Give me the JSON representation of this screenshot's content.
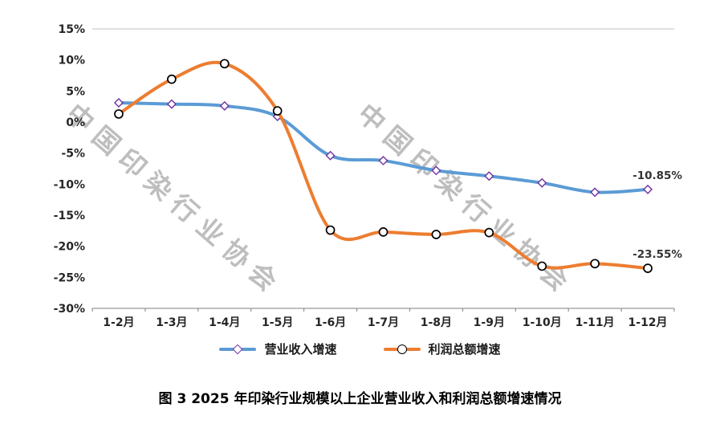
{
  "chart_data": {
    "type": "line",
    "title": "",
    "xlabel": "",
    "ylabel": "",
    "categories": [
      "1-2月",
      "1-3月",
      "1-4月",
      "1-5月",
      "1-6月",
      "1-7月",
      "1-8月",
      "1-9月",
      "1-10月",
      "1-11月",
      "1-12月"
    ],
    "series": [
      {
        "name": "营业收入增速",
        "color": "#5B9BD5",
        "marker": "diamond",
        "marker_stroke": "#7030A0",
        "values": [
          3.1,
          2.9,
          2.6,
          0.9,
          -5.4,
          -6.2,
          -7.8,
          -8.7,
          -9.8,
          -11.3,
          -10.85
        ],
        "end_label": "-10.85%"
      },
      {
        "name": "利润总额增速",
        "color": "#ED7D31",
        "marker": "circle",
        "marker_stroke": "#000000",
        "values": [
          1.3,
          6.9,
          9.4,
          1.8,
          -17.4,
          -17.7,
          -18.1,
          -17.8,
          -23.2,
          -22.8,
          -23.55
        ],
        "end_label": "-23.55%"
      }
    ],
    "ylim": [
      -30,
      15
    ],
    "y_tick_step": 5,
    "y_tick_labels": [
      "15%",
      "10%",
      "5%",
      "0%",
      "-5%",
      "-10%",
      "-15%",
      "-20%",
      "-25%",
      "-30%"
    ],
    "grid": false,
    "legend_position": "bottom"
  },
  "watermark": {
    "text": "中国印染行业协会",
    "color": "#7d7d7d"
  },
  "caption": {
    "text": "图 3 2025 年印染行业规模以上企业营业收入和利润总额增速情况"
  }
}
